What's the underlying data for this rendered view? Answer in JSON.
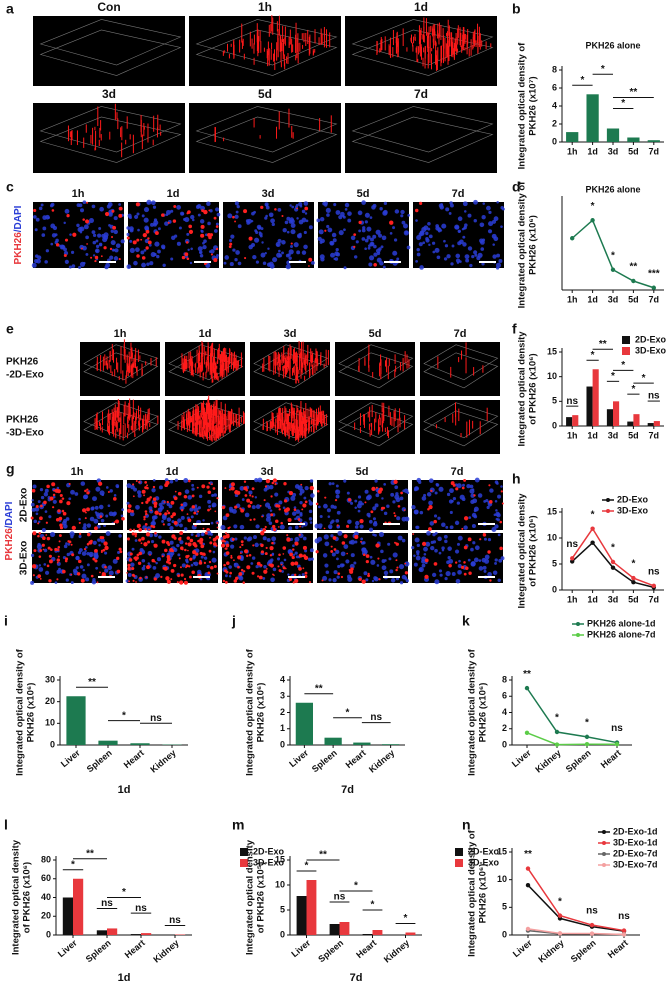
{
  "image_panels": [
    {
      "panel": "a",
      "labels": [
        "Con",
        "1h",
        "1d",
        "3d",
        "5d",
        "7d"
      ]
    },
    {
      "panel": "c",
      "labels": [
        "1h",
        "1d",
        "3d",
        "5d",
        "7d"
      ],
      "side_label": [
        "PKH26",
        "/DAPI"
      ]
    },
    {
      "panel": "e",
      "labels": [
        "1h",
        "1d",
        "3d",
        "5d",
        "7d"
      ],
      "row_labels": [
        [
          "PKH26",
          "-2D-Exo"
        ],
        [
          "PKH26",
          "-3D-Exo"
        ]
      ]
    },
    {
      "panel": "g",
      "labels": [
        "1h",
        "1d",
        "3d",
        "5d",
        "7d"
      ],
      "row_labels": [
        "2D-Exo",
        "3D-Exo"
      ],
      "side_label": [
        "PKH26",
        "/DAPI"
      ]
    }
  ],
  "chart_data": [
    {
      "panel": "b",
      "type": "bar",
      "title": "PKH26 alone",
      "ylabel": [
        "Integrated optical density of",
        "PKH26 (x10⁷)"
      ],
      "categories": [
        "1h",
        "1d",
        "3d",
        "5d",
        "7d"
      ],
      "values": [
        1.1,
        5.3,
        1.5,
        0.5,
        0.2
      ],
      "color": "#1d7a50",
      "ylim": [
        0,
        8
      ],
      "yticks": [
        0,
        2,
        4,
        6,
        8
      ],
      "annotations": [
        {
          "text": "*",
          "between": [
            0,
            1
          ]
        },
        {
          "text": "*",
          "between": [
            1,
            2
          ]
        },
        {
          "text": "*",
          "between": [
            2,
            3
          ]
        },
        {
          "text": "**",
          "between": [
            2,
            4
          ]
        }
      ]
    },
    {
      "panel": "d",
      "type": "line",
      "title": "PKH26 alone",
      "ylabel": [
        "Integrated optical density of",
        "PKH26 (x10⁶)"
      ],
      "categories": [
        "1h",
        "1d",
        "3d",
        "5d",
        "7d"
      ],
      "values": [
        4.6,
        6.2,
        1.8,
        0.8,
        0.2
      ],
      "color": "#1d7a50",
      "ylim": [
        0,
        8
      ],
      "annotations": [
        {
          "text": "*",
          "at": 1
        },
        {
          "text": "*",
          "at": 2
        },
        {
          "text": "**",
          "at": 3
        },
        {
          "text": "***",
          "at": 4
        }
      ]
    },
    {
      "panel": "f",
      "type": "bar",
      "ylabel": [
        "Integrated optical density",
        "of PKH26 (x10⁶)"
      ],
      "categories": [
        "1h",
        "1d",
        "3d",
        "5d",
        "7d"
      ],
      "series": [
        {
          "name": "2D-Exo",
          "color": "#111111",
          "values": [
            1.8,
            8,
            3.4,
            0.9,
            0.6
          ]
        },
        {
          "name": "3D-Exo",
          "color": "#e8383d",
          "values": [
            2.2,
            11.5,
            5,
            2.4,
            1
          ]
        }
      ],
      "ylim": [
        0,
        15
      ],
      "yticks": [
        0,
        5,
        10,
        15
      ],
      "annotations": [
        {
          "text": "ns",
          "at": 0
        },
        {
          "text": "*",
          "at": 1
        },
        {
          "text": "**",
          "between": [
            1,
            2
          ]
        },
        {
          "text": "*",
          "at": 2
        },
        {
          "text": "*",
          "between": [
            2,
            3
          ]
        },
        {
          "text": "*",
          "at": 3
        },
        {
          "text": "*",
          "between": [
            3,
            4
          ]
        },
        {
          "text": "ns",
          "at": 4
        }
      ]
    },
    {
      "panel": "h",
      "type": "line",
      "ylabel": [
        "Integrated optical density",
        "of PKH26 (x10⁶)"
      ],
      "categories": [
        "1h",
        "1d",
        "3d",
        "5d",
        "7d"
      ],
      "series": [
        {
          "name": "2D-Exo",
          "color": "#111111",
          "values": [
            5.5,
            9.1,
            4.3,
            1.5,
            0.5
          ]
        },
        {
          "name": "3D-Exo",
          "color": "#e8383d",
          "values": [
            6.1,
            11.8,
            5.4,
            2.3,
            0.8
          ]
        }
      ],
      "ylim": [
        0,
        15
      ],
      "yticks": [
        0,
        5,
        10,
        15
      ],
      "annotations": [
        {
          "text": "ns",
          "at": 0
        },
        {
          "text": "*",
          "at": 1
        },
        {
          "text": "*",
          "at": 2
        },
        {
          "text": "*",
          "at": 3
        },
        {
          "text": "ns",
          "at": 4
        }
      ]
    },
    {
      "panel": "i",
      "type": "bar",
      "ylabel": [
        "Integrated optical density of",
        "PKH26 (x10⁶)"
      ],
      "xlabel": "1d",
      "categories": [
        "Liver",
        "Spleen",
        "Heart",
        "Kidney"
      ],
      "values": [
        22.5,
        2,
        0.8,
        0.2
      ],
      "color": "#1d7a50",
      "ylim": [
        0,
        30
      ],
      "yticks": [
        0,
        10,
        20,
        30
      ],
      "annotations": [
        {
          "text": "**",
          "between": [
            0,
            1
          ]
        },
        {
          "text": "*",
          "between": [
            1,
            2
          ]
        },
        {
          "text": "ns",
          "between": [
            2,
            3
          ]
        }
      ]
    },
    {
      "panel": "j",
      "type": "bar",
      "ylabel": [
        "Integrated optical density of",
        "PKH26 (x10⁶)"
      ],
      "xlabel": "7d",
      "categories": [
        "Liver",
        "Spleen",
        "Heart",
        "Kidney"
      ],
      "values": [
        2.6,
        0.45,
        0.15,
        0.05
      ],
      "color": "#1d7a50",
      "ylim": [
        0,
        4
      ],
      "yticks": [
        0,
        1,
        2,
        3,
        4
      ],
      "annotations": [
        {
          "text": "**",
          "between": [
            0,
            1
          ]
        },
        {
          "text": "*",
          "between": [
            1,
            2
          ]
        },
        {
          "text": "ns",
          "between": [
            2,
            3
          ]
        }
      ]
    },
    {
      "panel": "k",
      "type": "line",
      "ylabel": [
        "Integrated optical density of",
        "PKH26 (x10⁶)"
      ],
      "categories": [
        "Liver",
        "Kidney",
        "Spleen",
        "Heart"
      ],
      "series": [
        {
          "name": "PKH26 alone-1d",
          "color": "#1d7a50",
          "values": [
            7,
            1.6,
            1,
            0.3
          ]
        },
        {
          "name": "PKH26 alone-7d",
          "color": "#5ccc48",
          "values": [
            1.5,
            0.05,
            0.1,
            0.1
          ]
        }
      ],
      "ylim": [
        0,
        8
      ],
      "yticks": [
        0,
        2,
        4,
        6,
        8
      ],
      "annotations": [
        {
          "text": "**",
          "at": 0
        },
        {
          "text": "*",
          "at": 1
        },
        {
          "text": "*",
          "at": 2
        },
        {
          "text": "ns",
          "at": 3
        }
      ]
    },
    {
      "panel": "l",
      "type": "bar",
      "ylabel": [
        "Integrated optical density",
        "of PKH26 (x10⁶)"
      ],
      "xlabel": "1d",
      "categories": [
        "Liver",
        "Spleen",
        "Heart",
        "Kidney"
      ],
      "series": [
        {
          "name": "2D-Exo",
          "color": "#111111",
          "values": [
            40,
            5,
            1,
            0.3
          ]
        },
        {
          "name": "3D-Exo",
          "color": "#e8383d",
          "values": [
            60,
            7,
            2,
            0.5
          ]
        }
      ],
      "ylim": [
        0,
        80
      ],
      "yticks": [
        0,
        20,
        40,
        60,
        80
      ],
      "annotations": [
        {
          "text": "*",
          "at": 0
        },
        {
          "text": "**",
          "between": [
            0,
            1
          ]
        },
        {
          "text": "ns",
          "at": 1
        },
        {
          "text": "*",
          "between": [
            1,
            2
          ]
        },
        {
          "text": "ns",
          "at": 2
        },
        {
          "text": "ns",
          "at": 3
        }
      ]
    },
    {
      "panel": "m",
      "type": "bar",
      "ylabel": [
        "Integrated optical density",
        "of PKH26 (x10⁵)"
      ],
      "xlabel": "7d",
      "categories": [
        "Liver",
        "Spleen",
        "Heart",
        "Kidney"
      ],
      "series": [
        {
          "name": "2D-Exo",
          "color": "#111111",
          "values": [
            7.8,
            2.2,
            0.2,
            0.1
          ]
        },
        {
          "name": "3D-Exo",
          "color": "#e8383d",
          "values": [
            11,
            2.6,
            1,
            0.5
          ]
        }
      ],
      "ylim": [
        0,
        15
      ],
      "yticks": [
        0,
        5,
        10,
        15
      ],
      "annotations": [
        {
          "text": "*",
          "at": 0
        },
        {
          "text": "**",
          "between": [
            0,
            1
          ]
        },
        {
          "text": "ns",
          "at": 1
        },
        {
          "text": "*",
          "between": [
            1,
            2
          ]
        },
        {
          "text": "*",
          "at": 2
        },
        {
          "text": "*",
          "at": 3
        }
      ]
    },
    {
      "panel": "n",
      "type": "line",
      "ylabel": [
        "Integrated optical density of",
        "PKH26 (x10⁶)"
      ],
      "categories": [
        "Liver",
        "Kidney",
        "Spleen",
        "Heart"
      ],
      "series": [
        {
          "name": "2D-Exo-1d",
          "color": "#111111",
          "values": [
            9,
            3,
            1.5,
            0.7
          ]
        },
        {
          "name": "3D-Exo-1d",
          "color": "#e8383d",
          "values": [
            12,
            3.5,
            1.8,
            0.8
          ]
        },
        {
          "name": "2D-Exo-7d",
          "color": "#666666",
          "values": [
            0.8,
            0.2,
            0.2,
            0.1
          ]
        },
        {
          "name": "3D-Exo-7d",
          "color": "#f4a0a0",
          "values": [
            1.1,
            0.3,
            0.26,
            0.1
          ]
        }
      ],
      "ylim": [
        0,
        15
      ],
      "yticks": [
        0,
        5,
        10,
        15
      ],
      "annotations": [
        {
          "text": "**",
          "at": 0
        },
        {
          "text": "*",
          "at": 1
        },
        {
          "text": "ns",
          "at": 2
        },
        {
          "text": "ns",
          "at": 3
        }
      ]
    }
  ]
}
